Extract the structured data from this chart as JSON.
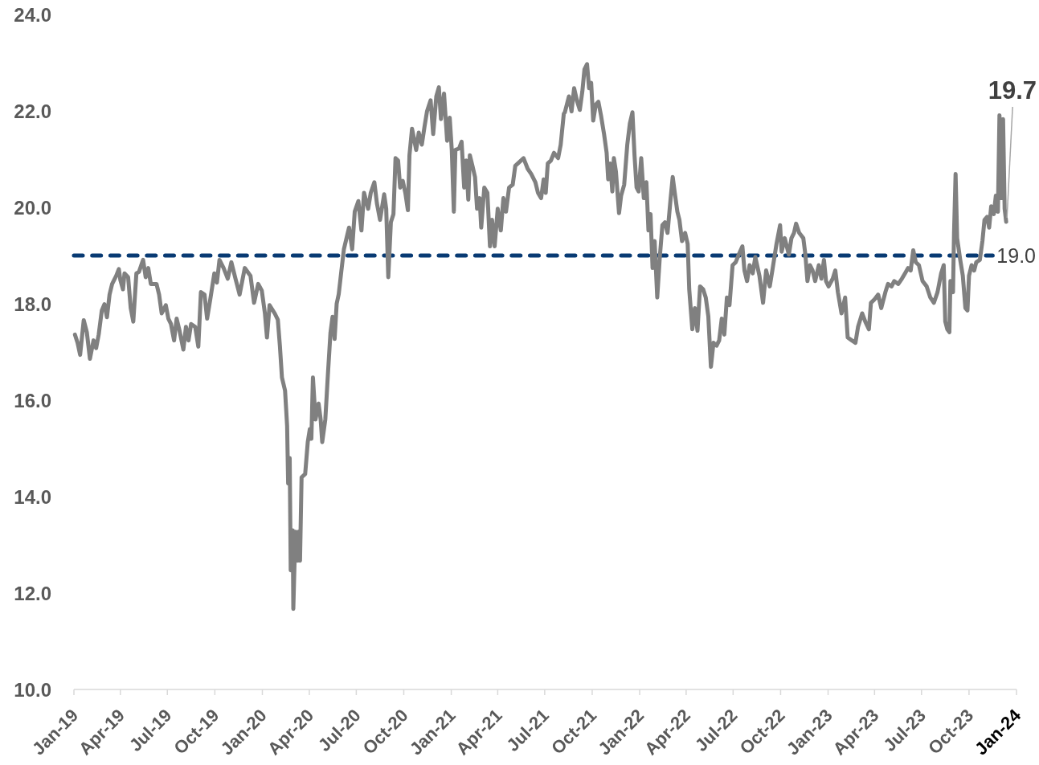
{
  "chart_data": {
    "type": "line",
    "x": [
      "2019-01-03",
      "2019-01-08",
      "2019-01-13",
      "2019-01-20",
      "2019-01-26",
      "2019-02-01",
      "2019-02-08",
      "2019-02-13",
      "2019-02-18",
      "2019-02-24",
      "2019-03-01",
      "2019-03-06",
      "2019-03-11",
      "2019-03-16",
      "2019-03-24",
      "2019-03-29",
      "2019-04-01",
      "2019-04-06",
      "2019-04-09",
      "2019-04-16",
      "2019-04-21",
      "2019-04-26",
      "2019-05-02",
      "2019-05-07",
      "2019-05-15",
      "2019-05-20",
      "2019-05-25",
      "2019-05-30",
      "2019-06-10",
      "2019-06-15",
      "2019-06-20",
      "2019-06-28",
      "2019-07-03",
      "2019-07-08",
      "2019-07-14",
      "2019-07-19",
      "2019-07-24",
      "2019-08-01",
      "2019-08-06",
      "2019-08-11",
      "2019-08-16",
      "2019-08-24",
      "2019-08-30",
      "2019-09-04",
      "2019-09-11",
      "2019-09-16",
      "2019-09-22",
      "2019-09-30",
      "2019-10-05",
      "2019-10-10",
      "2019-10-18",
      "2019-10-26",
      "2019-11-02",
      "2019-11-10",
      "2019-11-18",
      "2019-11-28",
      "2019-12-09",
      "2019-12-16",
      "2019-12-24",
      "2019-12-31",
      "2020-01-06",
      "2020-01-10",
      "2020-01-15",
      "2020-01-25",
      "2020-01-31",
      "2020-02-04",
      "2020-02-08",
      "2020-02-14",
      "2020-02-18",
      "2020-02-20",
      "2020-02-23",
      "2020-02-25",
      "2020-02-29",
      "2020-03-01",
      "2020-03-05",
      "2020-03-09",
      "2020-03-11",
      "2020-03-14",
      "2020-03-17",
      "2020-03-24",
      "2020-03-29",
      "2020-04-02",
      "2020-04-05",
      "2020-04-08",
      "2020-04-13",
      "2020-04-19",
      "2020-04-23",
      "2020-04-26",
      "2020-05-02",
      "2020-05-07",
      "2020-05-12",
      "2020-05-16",
      "2020-05-20",
      "2020-05-24",
      "2020-05-28",
      "2020-06-02",
      "2020-06-07",
      "2020-06-17",
      "2020-06-23",
      "2020-06-28",
      "2020-07-05",
      "2020-07-11",
      "2020-07-16",
      "2020-07-24",
      "2020-07-29",
      "2020-08-05",
      "2020-08-10",
      "2020-08-16",
      "2020-08-24",
      "2020-08-28",
      "2020-09-01",
      "2020-09-06",
      "2020-09-11",
      "2020-09-15",
      "2020-09-20",
      "2020-09-24",
      "2020-09-29",
      "2020-10-04",
      "2020-10-09",
      "2020-10-12",
      "2020-10-17",
      "2020-10-25",
      "2020-10-30",
      "2020-11-05",
      "2020-11-10",
      "2020-11-15",
      "2020-11-22",
      "2020-11-27",
      "2020-12-03",
      "2020-12-08",
      "2020-12-12",
      "2020-12-18",
      "2020-12-24",
      "2020-12-29",
      "2021-01-02",
      "2021-01-06",
      "2021-01-09",
      "2021-01-16",
      "2021-01-21",
      "2021-01-26",
      "2021-01-30",
      "2021-02-03",
      "2021-02-06",
      "2021-02-11",
      "2021-02-16",
      "2021-02-20",
      "2021-02-25",
      "2021-02-28",
      "2021-03-06",
      "2021-03-12",
      "2021-03-17",
      "2021-03-21",
      "2021-03-26",
      "2021-04-01",
      "2021-04-07",
      "2021-04-12",
      "2021-04-17",
      "2021-04-23",
      "2021-04-30",
      "2021-05-05",
      "2021-05-13",
      "2021-05-21",
      "2021-05-29",
      "2021-06-05",
      "2021-06-13",
      "2021-06-18",
      "2021-06-24",
      "2021-06-29",
      "2021-07-03",
      "2021-07-07",
      "2021-07-13",
      "2021-07-19",
      "2021-07-27",
      "2021-08-01",
      "2021-08-07",
      "2021-08-09",
      "2021-08-17",
      "2021-08-22",
      "2021-08-27",
      "2021-09-02",
      "2021-09-07",
      "2021-09-12",
      "2021-09-16",
      "2021-09-21",
      "2021-09-25",
      "2021-09-29",
      "2021-10-03",
      "2021-10-08",
      "2021-10-13",
      "2021-10-18",
      "2021-10-24",
      "2021-10-29",
      "2021-11-01",
      "2021-11-05",
      "2021-11-09",
      "2021-11-12",
      "2021-11-16",
      "2021-11-22",
      "2021-11-26",
      "2021-12-02",
      "2021-12-08",
      "2021-12-13",
      "2021-12-18",
      "2021-12-22",
      "2021-12-26",
      "2021-12-30",
      "2022-01-04",
      "2022-01-09",
      "2022-01-14",
      "2022-01-18",
      "2022-01-22",
      "2022-01-26",
      "2022-01-30",
      "2022-02-04",
      "2022-02-09",
      "2022-02-14",
      "2022-02-19",
      "2022-02-24",
      "2022-03-02",
      "2022-03-06",
      "2022-03-10",
      "2022-03-15",
      "2022-03-19",
      "2022-03-24",
      "2022-03-30",
      "2022-04-04",
      "2022-04-07",
      "2022-04-13",
      "2022-04-18",
      "2022-04-23",
      "2022-04-28",
      "2022-05-04",
      "2022-05-09",
      "2022-05-14",
      "2022-05-19",
      "2022-05-24",
      "2022-05-30",
      "2022-06-04",
      "2022-06-09",
      "2022-06-14",
      "2022-06-19",
      "2022-06-24",
      "2022-06-30",
      "2022-07-06",
      "2022-07-12",
      "2022-07-19",
      "2022-07-23",
      "2022-07-28",
      "2022-08-02",
      "2022-08-08",
      "2022-08-13",
      "2022-08-21",
      "2022-08-28",
      "2022-09-03",
      "2022-09-10",
      "2022-09-15",
      "2022-09-23",
      "2022-09-30",
      "2022-10-03",
      "2022-10-09",
      "2022-10-17",
      "2022-10-22",
      "2022-10-27",
      "2022-10-31",
      "2022-11-06",
      "2022-11-14",
      "2022-11-18",
      "2022-11-22",
      "2022-11-27",
      "2022-12-02",
      "2022-12-07",
      "2022-12-14",
      "2022-12-19",
      "2022-12-24",
      "2022-12-28",
      "2023-01-02",
      "2023-01-10",
      "2023-01-15",
      "2023-01-20",
      "2023-01-27",
      "2023-02-03",
      "2023-02-08",
      "2023-02-16",
      "2023-02-23",
      "2023-02-28",
      "2023-03-08",
      "2023-03-14",
      "2023-03-21",
      "2023-03-25",
      "2023-03-31",
      "2023-04-08",
      "2023-04-14",
      "2023-04-22",
      "2023-04-27",
      "2023-05-04",
      "2023-05-09",
      "2023-05-17",
      "2023-05-24",
      "2023-05-30",
      "2023-06-05",
      "2023-06-10",
      "2023-06-15",
      "2023-06-20",
      "2023-06-26",
      "2023-07-03",
      "2023-07-11",
      "2023-07-18",
      "2023-07-25",
      "2023-08-01",
      "2023-08-08",
      "2023-08-13",
      "2023-08-16",
      "2023-08-20",
      "2023-08-24",
      "2023-08-26",
      "2023-08-31",
      "2023-09-02",
      "2023-09-05",
      "2023-09-08",
      "2023-09-14",
      "2023-09-19",
      "2023-09-24",
      "2023-09-28",
      "2023-10-01",
      "2023-10-06",
      "2023-10-11",
      "2023-10-15",
      "2023-10-22",
      "2023-10-27",
      "2023-10-31",
      "2023-11-05",
      "2023-11-09",
      "2023-11-13",
      "2023-11-18",
      "2023-11-22",
      "2023-11-26",
      "2023-11-29",
      "2023-12-03",
      "2023-12-06",
      "2023-12-09",
      "2023-12-12"
    ],
    "series": [
      {
        "color": "#808080",
        "values": [
          17.36,
          17.19,
          16.94,
          17.66,
          17.41,
          16.86,
          17.24,
          17.08,
          17.36,
          17.86,
          17.99,
          17.72,
          18.19,
          18.41,
          18.58,
          18.72,
          18.49,
          18.3,
          18.63,
          18.55,
          17.91,
          17.63,
          18.63,
          18.66,
          18.91,
          18.55,
          18.74,
          18.41,
          18.41,
          18.19,
          17.8,
          17.97,
          17.69,
          17.58,
          17.24,
          17.69,
          17.47,
          17.05,
          17.52,
          17.24,
          17.58,
          17.52,
          17.11,
          18.24,
          18.19,
          17.69,
          18.08,
          18.63,
          18.44,
          18.91,
          18.74,
          18.52,
          18.86,
          18.52,
          18.19,
          18.74,
          18.58,
          18.02,
          18.41,
          18.27,
          17.8,
          17.3,
          17.97,
          17.8,
          17.67,
          17.13,
          16.47,
          16.2,
          15.47,
          14.27,
          14.8,
          12.47,
          13.3,
          11.67,
          13.27,
          12.67,
          13.27,
          12.67,
          14.4,
          14.47,
          15.13,
          15.4,
          15.2,
          16.47,
          15.6,
          15.93,
          15.6,
          15.13,
          15.6,
          16.53,
          17.4,
          17.73,
          17.27,
          18.0,
          18.2,
          18.67,
          19.13,
          19.58,
          19.13,
          19.91,
          20.13,
          19.52,
          20.3,
          19.97,
          20.3,
          20.52,
          20.08,
          19.74,
          20.27,
          19.97,
          18.55,
          19.69,
          19.86,
          21.02,
          20.97,
          20.41,
          20.55,
          20.3,
          19.94,
          21.08,
          21.63,
          21.19,
          21.55,
          21.3,
          21.66,
          21.99,
          22.22,
          21.52,
          22.3,
          22.49,
          21.83,
          22.36,
          21.38,
          21.86,
          21.19,
          19.91,
          21.19,
          21.22,
          21.36,
          20.41,
          20.97,
          20.16,
          21.08,
          20.86,
          20.63,
          19.97,
          20.19,
          19.58,
          20.41,
          20.3,
          19.19,
          19.74,
          19.19,
          19.97,
          19.52,
          20.19,
          19.91,
          20.41,
          20.47,
          20.86,
          20.94,
          21.02,
          20.8,
          20.69,
          20.52,
          20.3,
          20.19,
          20.58,
          20.3,
          20.91,
          20.97,
          21.13,
          21.02,
          21.3,
          21.94,
          21.97,
          22.3,
          21.99,
          22.47,
          22.19,
          22.02,
          22.41,
          22.86,
          22.97,
          22.47,
          22.58,
          21.8,
          22.13,
          22.19,
          21.91,
          21.52,
          21.13,
          20.58,
          20.91,
          20.33,
          21.02,
          20.74,
          19.88,
          20.24,
          20.47,
          21.3,
          21.74,
          21.97,
          21.08,
          20.41,
          20.33,
          21.02,
          20.19,
          20.52,
          19.52,
          19.86,
          18.74,
          19.3,
          18.13,
          18.97,
          19.63,
          19.69,
          19.47,
          20.19,
          20.63,
          20.3,
          19.91,
          19.74,
          19.3,
          19.47,
          19.24,
          18.3,
          17.47,
          17.91,
          17.44,
          18.36,
          18.3,
          18.13,
          17.74,
          16.69,
          17.19,
          17.13,
          17.24,
          17.69,
          17.36,
          18.13,
          17.97,
          18.8,
          18.86,
          19.02,
          19.19,
          18.69,
          18.47,
          18.8,
          18.63,
          18.97,
          18.58,
          18.02,
          18.69,
          18.36,
          18.69,
          19.24,
          19.63,
          19.08,
          19.36,
          19.02,
          19.36,
          19.47,
          19.66,
          19.47,
          19.36,
          19.02,
          18.47,
          18.8,
          18.69,
          18.47,
          18.8,
          18.52,
          18.91,
          18.47,
          18.36,
          18.52,
          18.69,
          18.24,
          17.8,
          18.13,
          17.3,
          17.24,
          17.19,
          17.52,
          17.8,
          17.63,
          17.47,
          18.02,
          18.08,
          18.19,
          17.91,
          18.24,
          18.41,
          18.36,
          18.47,
          18.41,
          18.52,
          18.63,
          18.74,
          18.69,
          19.11,
          18.86,
          18.8,
          18.47,
          18.36,
          18.13,
          18.02,
          18.24,
          18.63,
          18.8,
          17.63,
          17.47,
          17.41,
          18.47,
          18.24,
          19.47,
          20.69,
          19.36,
          18.91,
          18.58,
          17.91,
          17.86,
          18.58,
          18.8,
          18.69,
          18.86,
          18.91,
          19.3,
          19.74,
          19.8,
          19.58,
          20.02,
          19.86,
          20.24,
          19.91,
          21.91,
          20.19,
          21.83,
          19.97,
          19.7
        ]
      }
    ],
    "xlim": [
      "2019-01-01",
      "2024-01-01"
    ],
    "xticks": [
      {
        "value": "2019-01-01",
        "label": "Jan-19"
      },
      {
        "value": "2019-04-01",
        "label": "Apr-19"
      },
      {
        "value": "2019-07-01",
        "label": "Jul-19"
      },
      {
        "value": "2019-10-01",
        "label": "Oct-19"
      },
      {
        "value": "2020-01-01",
        "label": "Jan-20"
      },
      {
        "value": "2020-04-01",
        "label": "Apr-20"
      },
      {
        "value": "2020-07-01",
        "label": "Jul-20"
      },
      {
        "value": "2020-10-01",
        "label": "Oct-20"
      },
      {
        "value": "2021-01-01",
        "label": "Jan-21"
      },
      {
        "value": "2021-04-01",
        "label": "Apr-21"
      },
      {
        "value": "2021-07-01",
        "label": "Jul-21"
      },
      {
        "value": "2021-10-01",
        "label": "Oct-21"
      },
      {
        "value": "2022-01-01",
        "label": "Jan-22"
      },
      {
        "value": "2022-04-01",
        "label": "Apr-22"
      },
      {
        "value": "2022-07-01",
        "label": "Jul-22"
      },
      {
        "value": "2022-10-01",
        "label": "Oct-22"
      },
      {
        "value": "2023-01-01",
        "label": "Jan-23"
      },
      {
        "value": "2023-04-01",
        "label": "Apr-23"
      },
      {
        "value": "2023-07-01",
        "label": "Jul-23"
      },
      {
        "value": "2023-10-01",
        "label": "Oct-23"
      },
      {
        "value": "2024-01-01",
        "label": "Jan-24"
      }
    ],
    "ylim": [
      10,
      24
    ],
    "yticks": [
      {
        "value": 10,
        "label": "10.0"
      },
      {
        "value": 12,
        "label": "12.0"
      },
      {
        "value": 14,
        "label": "14.0"
      },
      {
        "value": 16,
        "label": "16.0"
      },
      {
        "value": 18,
        "label": "18.0"
      },
      {
        "value": 20,
        "label": "20.0"
      },
      {
        "value": 22,
        "label": "22.0"
      },
      {
        "value": 24,
        "label": "24.0"
      }
    ],
    "ref_lines": [
      {
        "axis": "y",
        "value": 19,
        "label": "19.0",
        "color": "#083a73",
        "line_style": "dashed"
      }
    ],
    "annotations": [
      {
        "text": "19.7",
        "x": "2023-12-12",
        "y": 19.7
      }
    ]
  }
}
